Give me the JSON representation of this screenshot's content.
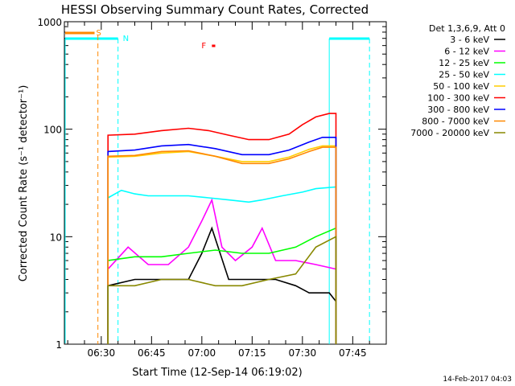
{
  "chart_data": {
    "type": "line",
    "title": "HESSI Observing Summary Count Rates, Corrected",
    "xlabel": "Start Time (12-Sep-14 06:19:02)",
    "ylabel": "Corrected Count Rate (s⁻¹ detector⁻¹)",
    "yscale": "log",
    "ylim": [
      1,
      1000
    ],
    "x_unit": "HH:MM",
    "xlim": [
      "06:19",
      "07:55"
    ],
    "x_ticks": [
      "06:30",
      "06:45",
      "07:00",
      "07:15",
      "07:30",
      "07:45"
    ],
    "y_ticks": [
      {
        "value": 1,
        "label": "1"
      },
      {
        "value": 10,
        "label": "10"
      },
      {
        "value": 100,
        "label": "100"
      },
      {
        "value": 1000,
        "label": "1000"
      }
    ],
    "legend_title": "Det 1,3,6,9, Att 0",
    "legend_position": "right",
    "series": [
      {
        "name": "3 - 6 keV",
        "color": "#000000",
        "x": [
          "06:32",
          "06:40",
          "06:48",
          "06:56",
          "07:00",
          "07:03",
          "07:08",
          "07:15",
          "07:22",
          "07:28",
          "07:32",
          "07:38",
          "07:40"
        ],
        "y": [
          3.5,
          4,
          4,
          4,
          7,
          12,
          4,
          4,
          4,
          3.5,
          3,
          3,
          2.5
        ]
      },
      {
        "name": "6 - 12 keV",
        "color": "#ff00ff",
        "x": [
          "06:32",
          "06:38",
          "06:44",
          "06:50",
          "06:56",
          "07:00",
          "07:03",
          "07:06",
          "07:10",
          "07:15",
          "07:18",
          "07:22",
          "07:28",
          "07:34",
          "07:40"
        ],
        "y": [
          5,
          8,
          5.5,
          5.5,
          8,
          14,
          22,
          8,
          6,
          8,
          12,
          6,
          6,
          5.5,
          5
        ]
      },
      {
        "name": "12 - 25 keV",
        "color": "#00ff00",
        "x": [
          "06:32",
          "06:40",
          "06:48",
          "06:56",
          "07:04",
          "07:12",
          "07:20",
          "07:28",
          "07:34",
          "07:40"
        ],
        "y": [
          6,
          6.5,
          6.5,
          7,
          7.5,
          7,
          7,
          8,
          10,
          12
        ]
      },
      {
        "name": "25 - 50 keV",
        "color": "#00ffff",
        "x": [
          "06:32",
          "06:36",
          "06:40",
          "06:44",
          "06:50",
          "06:56",
          "07:02",
          "07:08",
          "07:14",
          "07:18",
          "07:24",
          "07:30",
          "07:34",
          "07:40"
        ],
        "y": [
          23,
          27,
          25,
          24,
          24,
          24,
          23,
          22,
          21,
          22,
          24,
          26,
          28,
          29
        ]
      },
      {
        "name": "50 - 100 keV",
        "color": "#ffcc00",
        "x": [
          "06:32",
          "06:40",
          "06:48",
          "06:56",
          "07:04",
          "07:12",
          "07:20",
          "07:26",
          "07:32",
          "07:36",
          "07:40"
        ],
        "y": [
          55,
          56,
          60,
          62,
          56,
          50,
          50,
          55,
          65,
          70,
          70
        ]
      },
      {
        "name": "100 - 300 keV",
        "color": "#ff0000",
        "x": [
          "06:32",
          "06:40",
          "06:48",
          "06:56",
          "07:02",
          "07:08",
          "07:14",
          "07:20",
          "07:26",
          "07:30",
          "07:34",
          "07:38",
          "07:40"
        ],
        "y": [
          88,
          90,
          97,
          102,
          97,
          88,
          80,
          80,
          90,
          110,
          130,
          140,
          140
        ]
      },
      {
        "name": "300 - 800 keV",
        "color": "#0000ff",
        "x": [
          "06:32",
          "06:40",
          "06:48",
          "06:56",
          "07:04",
          "07:12",
          "07:20",
          "07:26",
          "07:32",
          "07:36",
          "07:40"
        ],
        "y": [
          62,
          64,
          70,
          72,
          66,
          58,
          58,
          64,
          76,
          84,
          84
        ]
      },
      {
        "name": "800 - 7000 keV",
        "color": "#ff8800",
        "x": [
          "06:32",
          "06:40",
          "06:48",
          "06:56",
          "07:04",
          "07:12",
          "07:20",
          "07:26",
          "07:32",
          "07:36",
          "07:40"
        ],
        "y": [
          56,
          57,
          62,
          63,
          56,
          48,
          48,
          53,
          62,
          68,
          68
        ]
      },
      {
        "name": "7000 - 20000 keV",
        "color": "#888800",
        "x": [
          "06:32",
          "06:40",
          "06:48",
          "06:56",
          "07:04",
          "07:12",
          "07:20",
          "07:28",
          "07:34",
          "07:40"
        ],
        "y": [
          3.5,
          3.5,
          4,
          4,
          3.5,
          3.5,
          4,
          4.5,
          8,
          10
        ]
      }
    ],
    "markers": {
      "saa_label": "S",
      "saa_color": "#ff8800",
      "night_label": "N",
      "night_color": "#00ffff",
      "flare_label": "F",
      "flare_color": "#ff0000",
      "saa_boundaries": [
        "06:29"
      ],
      "night_boundaries": [
        "06:35",
        "07:50"
      ],
      "night_solid_lines": [
        "07:38"
      ],
      "saa_segment": [
        "06:19",
        "06:28"
      ],
      "night_segments": [
        [
          "06:19",
          "06:35"
        ],
        [
          "07:38",
          "07:50"
        ]
      ],
      "flare_segment": [
        "07:03",
        "07:04"
      ]
    }
  },
  "footer": {
    "date": "14-Feb-2017 04:03"
  }
}
